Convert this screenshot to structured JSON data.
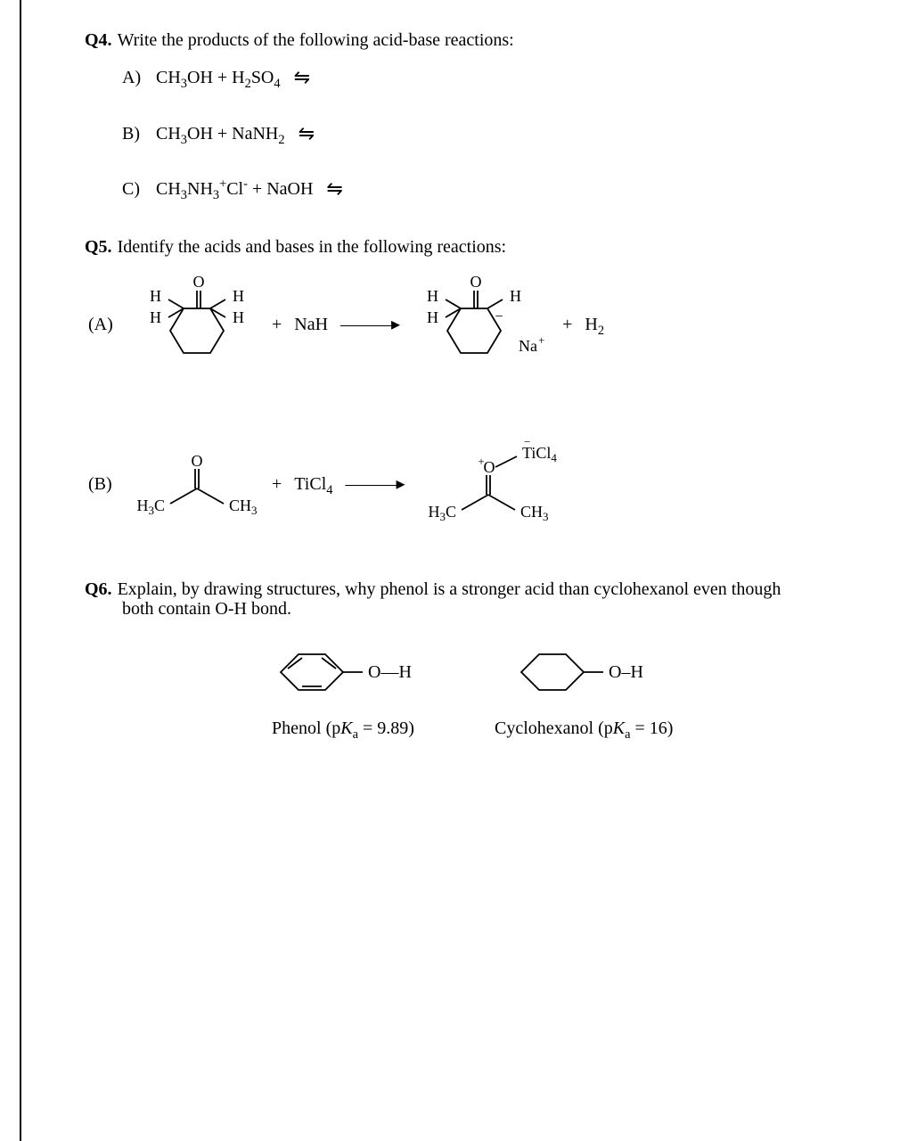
{
  "q4": {
    "num": "Q4.",
    "prompt": "Write the products of the following acid-base reactions:",
    "items": [
      {
        "label": "A)",
        "lhs_html": "CH<sub>3</sub>OH&nbsp;+&nbsp;H<sub>2</sub>SO<sub>4</sub>"
      },
      {
        "label": "B)",
        "lhs_html": "CH<sub>3</sub>OH&nbsp;+&nbsp;NaNH<sub>2</sub>"
      },
      {
        "label": "C)",
        "lhs_html": "CH<sub>3</sub>NH<sub>3</sub><sup>+</sup>Cl<sup>-</sup>&nbsp;+&nbsp;NaOH"
      }
    ],
    "equil_symbol": "⇋"
  },
  "q5": {
    "num": "Q5.",
    "prompt": "Identify the acids and bases in the following reactions:",
    "A": {
      "label": "(A)",
      "reagent": "NaH",
      "product_extra": "H<sub>2</sub>",
      "counterion": "Na<sup>+</sup>",
      "mol": {
        "O_label": "O",
        "H_labels": [
          "H",
          "H",
          "H",
          "H"
        ],
        "ring_stroke": "#000000",
        "stroke_w": 1.8
      }
    },
    "B": {
      "label": "(B)",
      "reagent": "TiCl<sub>4</sub>",
      "adduct_top": "TiCl<sub>4</sub>",
      "acetone": {
        "left": "H<sub>3</sub>C",
        "right": "CH<sub>3</sub>",
        "O": "O"
      }
    },
    "plus": "+",
    "arrow": "———▸"
  },
  "q6": {
    "num": "Q6.",
    "prompt_line1": "Explain, by drawing structures, why phenol is a stronger acid than cyclohexanol even though",
    "prompt_line2": "both contain O-H bond.",
    "phenol_caption_html": "Phenol (p<span class=\"italic-k\">K</span><sub>a</sub> = 9.89)",
    "cyclo_caption_html": "Cyclohexanol (p<span class=\"italic-k\">K</span><sub>a</sub> = 16)",
    "oh_label": "O—H",
    "oh_label2": "O–H"
  },
  "colors": {
    "text": "#000000",
    "bg": "#ffffff"
  }
}
